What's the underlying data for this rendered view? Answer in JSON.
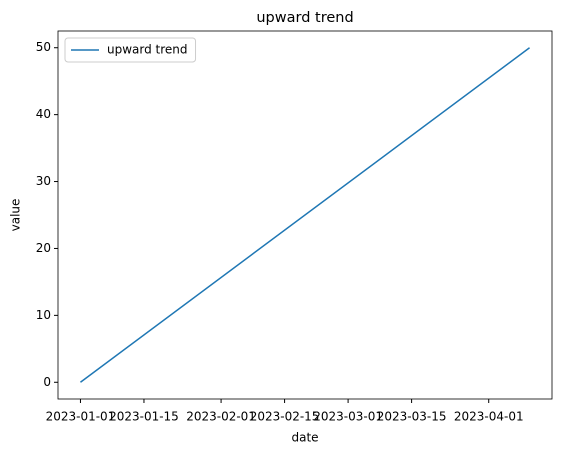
{
  "chart_data": {
    "type": "line",
    "title": "upward trend",
    "x_label": "date",
    "y_label": "value",
    "x": [
      "2023-01-01",
      "2023-04-10"
    ],
    "series": [
      {
        "name": "upward trend",
        "color": "#1f77b4",
        "values": [
          0,
          50
        ]
      }
    ],
    "xlim": [
      "2022-12-27T01:12",
      "2023-04-14T22:48"
    ],
    "xticks": [
      "2023-01-01",
      "2023-01-15",
      "2023-02-01",
      "2023-02-15",
      "2023-03-01",
      "2023-03-15",
      "2023-04-01"
    ],
    "ylim": [
      -2.5,
      52.5
    ],
    "yticks": [
      0,
      10,
      20,
      30,
      40,
      50
    ],
    "legend": "upper left",
    "grid": false
  }
}
